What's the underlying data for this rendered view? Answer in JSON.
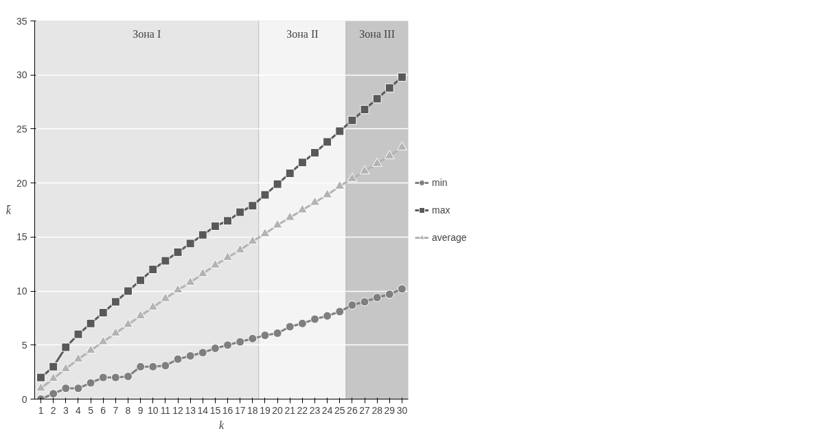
{
  "chart_data": {
    "type": "line",
    "xlabel": "k",
    "ylabel": "k̄",
    "x": [
      1,
      2,
      3,
      4,
      5,
      6,
      7,
      8,
      9,
      10,
      11,
      12,
      13,
      14,
      15,
      16,
      17,
      18,
      19,
      20,
      21,
      22,
      23,
      24,
      25,
      26,
      27,
      28,
      29,
      30
    ],
    "xlim": [
      0.5,
      30.5
    ],
    "xticks": [
      1,
      2,
      3,
      4,
      5,
      6,
      7,
      8,
      9,
      10,
      11,
      12,
      13,
      14,
      15,
      16,
      17,
      18,
      19,
      20,
      21,
      22,
      23,
      24,
      25,
      26,
      27,
      28,
      29,
      30
    ],
    "ylim": [
      0,
      35
    ],
    "yticks": [
      0,
      5,
      10,
      15,
      20,
      25,
      30,
      35
    ],
    "grid": "y",
    "legend": "right",
    "bands": [
      {
        "axis": "x",
        "from": 0.5,
        "to": 18.5,
        "label": "Зона I",
        "color": "#e6e6e6"
      },
      {
        "axis": "x",
        "from": 18.5,
        "to": 25.5,
        "label": "Зона II",
        "color": "#f4f4f4"
      },
      {
        "axis": "x",
        "from": 25.5,
        "to": 30.5,
        "label": "Зона III",
        "color": "#c6c6c6"
      }
    ],
    "series": [
      {
        "name": "min",
        "color": "#7f7f7f",
        "marker": "circle",
        "values": [
          0,
          0.5,
          1,
          1,
          1.5,
          2,
          2,
          2.1,
          3,
          3,
          3.1,
          3.7,
          4,
          4.3,
          4.7,
          5,
          5.3,
          5.6,
          5.9,
          6.1,
          6.7,
          7,
          7.4,
          7.7,
          8.1,
          8.7,
          9,
          9.4,
          9.7,
          10.2
        ]
      },
      {
        "name": "max",
        "color": "#595959",
        "marker": "square",
        "values": [
          2,
          3,
          4.8,
          6,
          7,
          8,
          9,
          10,
          11,
          12,
          12.8,
          13.6,
          14.4,
          15.2,
          16,
          16.5,
          17.3,
          17.9,
          18.9,
          19.9,
          20.9,
          21.9,
          22.8,
          23.8,
          24.8,
          25.8,
          26.8,
          27.8,
          28.8,
          29.8
        ]
      },
      {
        "name": "average",
        "color": "#b3b3b3",
        "marker": "triangle",
        "values": [
          1,
          1.9,
          2.8,
          3.7,
          4.5,
          5.3,
          6.1,
          6.9,
          7.7,
          8.5,
          9.3,
          10.1,
          10.8,
          11.6,
          12.4,
          13.1,
          13.8,
          14.6,
          15.3,
          16.1,
          16.8,
          17.5,
          18.2,
          18.9,
          19.7,
          20.4,
          21.1,
          21.8,
          22.5,
          23.3
        ]
      }
    ]
  }
}
